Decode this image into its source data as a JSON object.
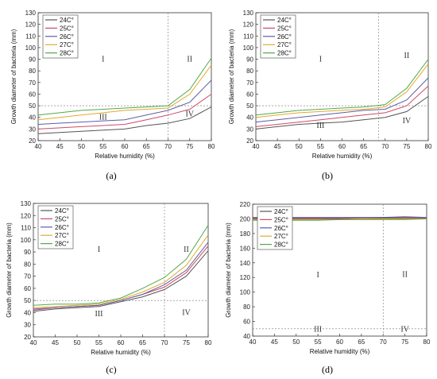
{
  "chart_data": [
    {
      "type": "line",
      "panel_label": "(a)",
      "xlabel": "Relative humidity (%)",
      "ylabel": "Growth diameter of bacteria (mm)",
      "xlim": [
        40,
        80
      ],
      "ylim": [
        20,
        130
      ],
      "x_ticks": [
        40,
        45,
        50,
        55,
        60,
        65,
        70,
        75,
        80
      ],
      "y_ticks": [
        20,
        30,
        40,
        50,
        60,
        70,
        80,
        90,
        100,
        110,
        120,
        130
      ],
      "x": [
        40,
        45,
        50,
        55,
        60,
        65,
        70,
        75,
        80
      ],
      "series": [
        {
          "name": "24C°",
          "color": "#555555",
          "values": [
            26,
            27,
            28,
            29,
            30,
            33,
            35,
            39,
            49
          ]
        },
        {
          "name": "25C°",
          "color": "#cc4c66",
          "values": [
            30,
            31,
            32,
            33,
            34,
            38,
            42,
            47,
            60
          ]
        },
        {
          "name": "26C°",
          "color": "#5b5ea6",
          "values": [
            34,
            35,
            36,
            37,
            38,
            42,
            46,
            53,
            72
          ]
        },
        {
          "name": "27C°",
          "color": "#e3a82b",
          "values": [
            38,
            40,
            42,
            44,
            46,
            47,
            48,
            60,
            85
          ]
        },
        {
          "name": "28C°",
          "color": "#54a84c",
          "values": [
            42,
            44,
            46,
            47,
            48,
            49,
            50,
            64,
            91
          ]
        }
      ],
      "vline": 70,
      "hline": 50,
      "legend_position": "top-left",
      "region_labels": [
        {
          "text": "I",
          "x": 55,
          "y": 88
        },
        {
          "text": "II",
          "x": 75,
          "y": 88
        },
        {
          "text": "III",
          "x": 55,
          "y": 38
        },
        {
          "text": "IV",
          "x": 75,
          "y": 41
        }
      ]
    },
    {
      "type": "line",
      "panel_label": "(b)",
      "xlabel": "Relative humidity (%)",
      "ylabel": "Growth diameter of bacteria (mm)",
      "xlim": [
        40,
        80
      ],
      "ylim": [
        20,
        130
      ],
      "x_ticks": [
        40,
        45,
        50,
        55,
        60,
        65,
        70,
        75,
        80
      ],
      "y_ticks": [
        20,
        30,
        40,
        50,
        60,
        70,
        80,
        90,
        100,
        110,
        120,
        130
      ],
      "x": [
        40,
        45,
        50,
        55,
        60,
        65,
        70,
        75,
        80
      ],
      "series": [
        {
          "name": "24C°",
          "color": "#555555",
          "values": [
            30,
            32,
            34,
            35,
            36,
            38,
            40,
            45,
            58
          ]
        },
        {
          "name": "25C°",
          "color": "#cc4c66",
          "values": [
            32,
            34,
            36,
            38,
            40,
            42,
            44,
            50,
            67
          ]
        },
        {
          "name": "26C°",
          "color": "#5b5ea6",
          "values": [
            36,
            38,
            40,
            42,
            44,
            46,
            47,
            55,
            74
          ]
        },
        {
          "name": "27C°",
          "color": "#e3a82b",
          "values": [
            40,
            42,
            44,
            45,
            46,
            47,
            49,
            62,
            86
          ]
        },
        {
          "name": "28C°",
          "color": "#54a84c",
          "values": [
            42,
            44,
            46,
            47,
            48,
            49,
            51,
            65,
            90
          ]
        }
      ],
      "vline": 68.5,
      "hline": 50,
      "legend_position": "top-left",
      "region_labels": [
        {
          "text": "I",
          "x": 55,
          "y": 88
        },
        {
          "text": "II",
          "x": 75,
          "y": 91
        },
        {
          "text": "III",
          "x": 55,
          "y": 31
        },
        {
          "text": "IV",
          "x": 75,
          "y": 35
        }
      ]
    },
    {
      "type": "line",
      "panel_label": "(c)",
      "xlabel": "Relative humidity (%)",
      "ylabel": "Growth diameter of bacteria (mm)",
      "xlim": [
        40,
        80
      ],
      "ylim": [
        20,
        130
      ],
      "x_ticks": [
        40,
        45,
        50,
        55,
        60,
        65,
        70,
        75,
        80
      ],
      "y_ticks": [
        20,
        30,
        40,
        50,
        60,
        70,
        80,
        90,
        100,
        110,
        120,
        130
      ],
      "x": [
        40,
        45,
        50,
        55,
        60,
        65,
        70,
        75,
        80
      ],
      "series": [
        {
          "name": "24C°",
          "color": "#555555",
          "values": [
            41,
            43,
            44,
            45,
            49,
            53,
            59,
            70,
            91
          ]
        },
        {
          "name": "25C°",
          "color": "#cc4c66",
          "values": [
            42,
            44,
            45,
            46,
            50,
            55,
            61,
            73,
            95
          ]
        },
        {
          "name": "26C°",
          "color": "#5b5ea6",
          "values": [
            43,
            44,
            45,
            46,
            50,
            55,
            63,
            75,
            98
          ]
        },
        {
          "name": "27C°",
          "color": "#e3a82b",
          "values": [
            44,
            45,
            46,
            47,
            51,
            57,
            65,
            79,
            104
          ]
        },
        {
          "name": "28C°",
          "color": "#54a84c",
          "values": [
            46,
            47,
            47,
            48,
            52,
            60,
            69,
            84,
            112
          ]
        }
      ],
      "vline": 70,
      "hline": 50,
      "legend_position": "top-left",
      "region_labels": [
        {
          "text": "I",
          "x": 55,
          "y": 90
        },
        {
          "text": "II",
          "x": 75,
          "y": 90
        },
        {
          "text": "III",
          "x": 55,
          "y": 37
        },
        {
          "text": "IV",
          "x": 75,
          "y": 38
        }
      ]
    },
    {
      "type": "line",
      "panel_label": "(d)",
      "xlabel": "Relative humidity (%)",
      "ylabel": "Growth diameter of bacteria (mm)",
      "xlim": [
        40,
        80
      ],
      "ylim": [
        40,
        220
      ],
      "x_ticks": [
        40,
        45,
        50,
        55,
        60,
        65,
        70,
        75,
        80
      ],
      "y_ticks": [
        40,
        60,
        80,
        100,
        120,
        140,
        160,
        180,
        200,
        220
      ],
      "x": [
        40,
        45,
        50,
        55,
        60,
        65,
        70,
        75,
        80
      ],
      "series": [
        {
          "name": "24C°",
          "color": "#555555",
          "values": [
            200,
            200,
            200,
            200,
            200,
            201,
            201,
            201,
            201
          ]
        },
        {
          "name": "25C°",
          "color": "#cc4c66",
          "values": [
            201,
            201,
            201,
            201,
            201,
            201,
            202,
            202,
            201
          ]
        },
        {
          "name": "26C°",
          "color": "#5b5ea6",
          "values": [
            202,
            202,
            202,
            202,
            202,
            202,
            202,
            203,
            202
          ]
        },
        {
          "name": "27C°",
          "color": "#e3a82b",
          "values": [
            199,
            199,
            199,
            199,
            199,
            200,
            200,
            200,
            200
          ]
        },
        {
          "name": "28C°",
          "color": "#54a84c",
          "values": [
            198,
            198,
            198,
            198,
            199,
            199,
            199,
            199,
            200
          ]
        }
      ],
      "vline": 70,
      "hline": 50,
      "legend_position": "top-left",
      "region_labels": [
        {
          "text": "I",
          "x": 55,
          "y": 120
        },
        {
          "text": "II",
          "x": 75,
          "y": 121
        },
        {
          "text": "III",
          "x": 55,
          "y": 46
        },
        {
          "text": "IV",
          "x": 75,
          "y": 46
        }
      ]
    }
  ]
}
